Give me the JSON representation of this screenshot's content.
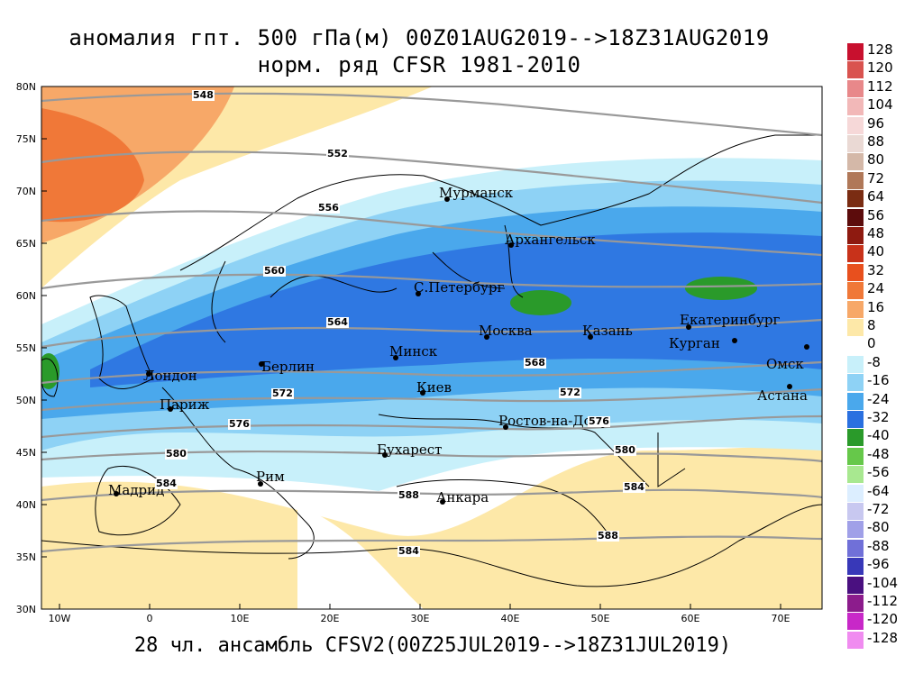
{
  "title_line1": "аномалия гпт. 500 гПа(м) 00Z01AUG2019-->18Z31AUG2019",
  "title_line2": "норм. ряд CFSR 1981-2010",
  "subtitle": "28 чл. ансамбль CFSV2(00Z25JUL2019-->18Z31JUL2019)",
  "lat_labels": [
    "80N",
    "75N",
    "70N",
    "65N",
    "60N",
    "55N",
    "50N",
    "45N",
    "40N",
    "35N",
    "30N"
  ],
  "lon_labels": [
    "10W",
    "0",
    "10E",
    "20E",
    "30E",
    "40E",
    "50E",
    "60E",
    "70E"
  ],
  "cities": [
    {
      "name": "Мурманск"
    },
    {
      "name": "Архангельск"
    },
    {
      "name": "С.Петербург"
    },
    {
      "name": "Москва"
    },
    {
      "name": "Казань"
    },
    {
      "name": "Екатеринбург"
    },
    {
      "name": "Курган"
    },
    {
      "name": "Омск"
    },
    {
      "name": "Астана"
    },
    {
      "name": "Минск"
    },
    {
      "name": "Киев"
    },
    {
      "name": "Берлин"
    },
    {
      "name": "Лондон"
    },
    {
      "name": "Париж"
    },
    {
      "name": "Ростов-на-Дону"
    },
    {
      "name": "Бухарест"
    },
    {
      "name": "Рим"
    },
    {
      "name": "Мадрид"
    },
    {
      "name": "Анкара"
    }
  ],
  "contour_labels": [
    "548",
    "552",
    "556",
    "560",
    "564",
    "568",
    "572",
    "572",
    "576",
    "576",
    "580",
    "580",
    "584",
    "584",
    "584",
    "588",
    "588"
  ],
  "legend": {
    "values": [
      "128",
      "120",
      "112",
      "104",
      "96",
      "88",
      "80",
      "72",
      "64",
      "56",
      "48",
      "40",
      "32",
      "24",
      "16",
      "8",
      "0",
      "-8",
      "-16",
      "-24",
      "-32",
      "-40",
      "-48",
      "-56",
      "-64",
      "-72",
      "-80",
      "-88",
      "-96",
      "-104",
      "-112",
      "-120",
      "-128"
    ],
    "colors": [
      "#c8102e",
      "#d9534f",
      "#e8888a",
      "#f2b8b8",
      "#f6d8d8",
      "#ead9d4",
      "#d4b8a8",
      "#b07858",
      "#7a2c12",
      "#5c0c0c",
      "#8e1a10",
      "#c8321a",
      "#e8501e",
      "#f07838",
      "#f7a868",
      "#fde8a8",
      "#ffffff",
      "#c8f0fa",
      "#8ed2f5",
      "#4aa8ec",
      "#2a70e0",
      "#2a9a2a",
      "#66c84a",
      "#a8e890",
      "#dceeff",
      "#c8c8f0",
      "#a0a0e8",
      "#7070d8",
      "#3838b8",
      "#4a1080",
      "#8c1c8c",
      "#c828c8",
      "#f08cf0"
    ]
  }
}
